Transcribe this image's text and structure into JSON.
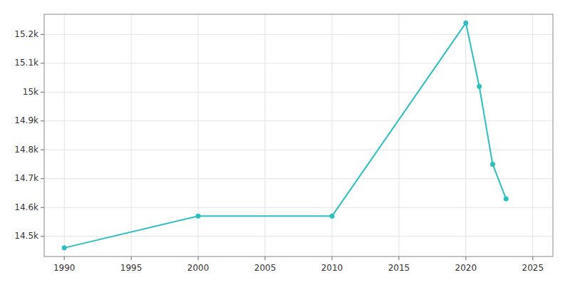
{
  "chart_data": {
    "type": "line",
    "x": [
      1990,
      2000,
      2010,
      2020,
      2021,
      2022,
      2023
    ],
    "values": [
      14460,
      14570,
      14570,
      15240,
      15020,
      14750,
      14630
    ],
    "color": "#2BBFBF",
    "marker": "circle",
    "xlim": [
      1988.5,
      2026.5
    ],
    "xticks": [
      1990,
      1995,
      2000,
      2005,
      2010,
      2015,
      2020,
      2025
    ],
    "ylim": [
      14430,
      15270
    ],
    "yticks": [
      {
        "value": 14500,
        "label": "14.5k"
      },
      {
        "value": 14600,
        "label": "14.6k"
      },
      {
        "value": 14700,
        "label": "14.7k"
      },
      {
        "value": 14800,
        "label": "14.8k"
      },
      {
        "value": 14900,
        "label": "14.9k"
      },
      {
        "value": 15000,
        "label": "15k"
      },
      {
        "value": 15100,
        "label": "15.1k"
      },
      {
        "value": 15200,
        "label": "15.2k"
      }
    ],
    "grid": true
  }
}
